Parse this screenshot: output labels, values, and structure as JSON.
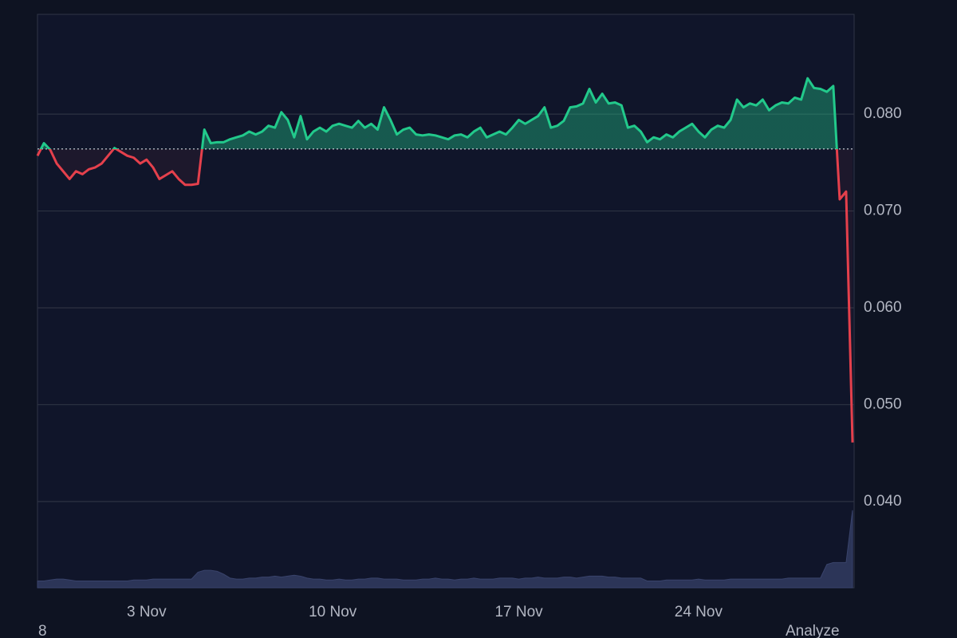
{
  "chart_data": {
    "type": "line",
    "categories": [
      null,
      null,
      null,
      null,
      null,
      null,
      null,
      null,
      null,
      null,
      null,
      null,
      null,
      null,
      null,
      null,
      null,
      "3 Nov",
      null,
      null,
      null,
      null,
      null,
      null,
      null,
      null,
      null,
      null,
      null,
      null,
      null,
      null,
      null,
      null,
      null,
      null,
      null,
      null,
      null,
      null,
      null,
      null,
      null,
      null,
      null,
      null,
      "10 Nov",
      null,
      null,
      null,
      null,
      null,
      null,
      null,
      null,
      null,
      null,
      null,
      null,
      null,
      null,
      null,
      null,
      null,
      null,
      null,
      null,
      null,
      null,
      null,
      null,
      null,
      null,
      null,
      null,
      "17 Nov",
      null,
      null,
      null,
      null,
      null,
      null,
      null,
      null,
      null,
      null,
      null,
      null,
      null,
      null,
      null,
      null,
      null,
      null,
      null,
      null,
      null,
      null,
      null,
      null,
      null,
      null,
      null,
      "24 Nov",
      null,
      null,
      null,
      null,
      null,
      null,
      null,
      null,
      null,
      null,
      null,
      null,
      null,
      null,
      null,
      null,
      null,
      null,
      null,
      null,
      null,
      null,
      null,
      null
    ],
    "values": [
      0.0757,
      0.077,
      0.0763,
      0.0749,
      0.0741,
      0.0733,
      0.0741,
      0.0738,
      0.0743,
      0.0745,
      0.0749,
      0.0757,
      0.0765,
      0.0761,
      0.0757,
      0.0755,
      0.0749,
      0.0753,
      0.0745,
      0.0733,
      0.0737,
      0.0741,
      0.0733,
      0.0727,
      0.0727,
      0.0728,
      0.0784,
      0.077,
      0.0771,
      0.0771,
      0.0774,
      0.0776,
      0.0778,
      0.0782,
      0.0779,
      0.0782,
      0.0788,
      0.0786,
      0.0802,
      0.0794,
      0.0776,
      0.0798,
      0.0774,
      0.0782,
      0.0786,
      0.0782,
      0.0788,
      0.079,
      0.0788,
      0.0786,
      0.0793,
      0.0786,
      0.079,
      0.0784,
      0.0807,
      0.0794,
      0.0779,
      0.0784,
      0.0786,
      0.0779,
      0.0778,
      0.0779,
      0.0778,
      0.0776,
      0.0774,
      0.0778,
      0.0779,
      0.0776,
      0.0782,
      0.0786,
      0.0776,
      0.0779,
      0.0782,
      0.0779,
      0.0786,
      0.0794,
      0.079,
      0.0794,
      0.0798,
      0.0807,
      0.0786,
      0.0788,
      0.0793,
      0.0807,
      0.0808,
      0.0811,
      0.0826,
      0.0812,
      0.0821,
      0.0811,
      0.0812,
      0.0809,
      0.0786,
      0.0788,
      0.0782,
      0.0771,
      0.0776,
      0.0774,
      0.0779,
      0.0776,
      0.0782,
      0.0786,
      0.079,
      0.0782,
      0.0776,
      0.0784,
      0.0788,
      0.0786,
      0.0794,
      0.0815,
      0.0807,
      0.0811,
      0.0809,
      0.0815,
      0.0804,
      0.0809,
      0.0812,
      0.0811,
      0.0817,
      0.0815,
      0.0837,
      0.0827,
      0.0826,
      0.0823,
      0.0829,
      0.0712,
      0.072,
      0.0461
    ],
    "volume": [
      0.0318,
      0.0318,
      0.0319,
      0.032,
      0.032,
      0.0319,
      0.0318,
      0.0318,
      0.0318,
      0.0318,
      0.0318,
      0.0318,
      0.0318,
      0.0318,
      0.0318,
      0.0319,
      0.0319,
      0.0319,
      0.032,
      0.032,
      0.032,
      0.032,
      0.032,
      0.032,
      0.032,
      0.0327,
      0.0329,
      0.0329,
      0.0328,
      0.0325,
      0.0321,
      0.032,
      0.032,
      0.0321,
      0.0321,
      0.0322,
      0.0322,
      0.0323,
      0.0322,
      0.0323,
      0.0324,
      0.0323,
      0.0321,
      0.032,
      0.032,
      0.0319,
      0.0319,
      0.032,
      0.0319,
      0.0319,
      0.032,
      0.032,
      0.0321,
      0.0321,
      0.032,
      0.032,
      0.032,
      0.0319,
      0.0319,
      0.0319,
      0.032,
      0.032,
      0.0321,
      0.032,
      0.032,
      0.0319,
      0.032,
      0.032,
      0.0321,
      0.032,
      0.032,
      0.032,
      0.0321,
      0.0321,
      0.0321,
      0.032,
      0.0321,
      0.0321,
      0.0322,
      0.0321,
      0.0321,
      0.0321,
      0.0322,
      0.0322,
      0.0321,
      0.0322,
      0.0323,
      0.0323,
      0.0323,
      0.0322,
      0.0322,
      0.0321,
      0.0321,
      0.0321,
      0.0321,
      0.0318,
      0.0318,
      0.0318,
      0.0319,
      0.0319,
      0.0319,
      0.0319,
      0.0319,
      0.032,
      0.0319,
      0.0319,
      0.0319,
      0.0319,
      0.032,
      0.032,
      0.032,
      0.032,
      0.032,
      0.032,
      0.032,
      0.032,
      0.032,
      0.0321,
      0.0321,
      0.0321,
      0.0321,
      0.0321,
      0.0321,
      0.0335,
      0.0337,
      0.0337,
      0.0337,
      0.0391
    ],
    "baseline": 0.0764,
    "color_up": "#22c98b",
    "color_down": "#e5404c",
    "volume_color": "#2c3558",
    "ylim": [
      0.0311,
      0.0903
    ],
    "yticks": [
      {
        "value": 0.08,
        "label": "0.080"
      },
      {
        "value": 0.07,
        "label": "0.070"
      },
      {
        "value": 0.06,
        "label": "0.060"
      },
      {
        "value": 0.05,
        "label": "0.050"
      },
      {
        "value": 0.04,
        "label": "0.040"
      }
    ],
    "grid": true,
    "annotations": [
      "8",
      "Analyze"
    ]
  }
}
